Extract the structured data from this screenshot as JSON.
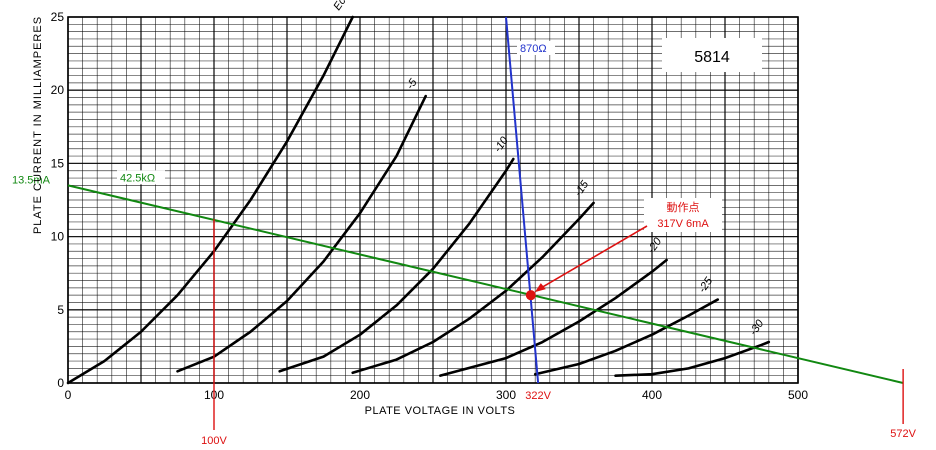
{
  "chart_data": {
    "type": "line",
    "title": "5814",
    "xlabel": "PLATE VOLTAGE IN VOLTS",
    "ylabel": "PLATE CURRENT IN MILLIAMPERES",
    "xlim": [
      0,
      500
    ],
    "ylim": [
      0,
      25
    ],
    "grid": true,
    "x_ticks": [
      0,
      100,
      200,
      300,
      400,
      500
    ],
    "y_ticks": [
      0,
      5,
      10,
      15,
      20,
      25
    ],
    "series": [
      {
        "name": "Ec=0",
        "points": [
          [
            0,
            0
          ],
          [
            25,
            1.5
          ],
          [
            50,
            3.5
          ],
          [
            75,
            6
          ],
          [
            100,
            9
          ],
          [
            125,
            12.5
          ],
          [
            150,
            16.5
          ],
          [
            175,
            21
          ],
          [
            195,
            25
          ]
        ]
      },
      {
        "name": "-5",
        "points": [
          [
            75,
            0.8
          ],
          [
            100,
            1.8
          ],
          [
            125,
            3.5
          ],
          [
            150,
            5.6
          ],
          [
            175,
            8.3
          ],
          [
            200,
            11.6
          ],
          [
            225,
            15.5
          ],
          [
            245,
            19.6
          ]
        ]
      },
      {
        "name": "-10",
        "points": [
          [
            145,
            0.8
          ],
          [
            175,
            1.8
          ],
          [
            200,
            3.3
          ],
          [
            225,
            5.3
          ],
          [
            250,
            7.8
          ],
          [
            275,
            10.9
          ],
          [
            300,
            14.5
          ],
          [
            305,
            15.3
          ]
        ]
      },
      {
        "name": "-15",
        "points": [
          [
            195,
            0.7
          ],
          [
            225,
            1.6
          ],
          [
            250,
            2.8
          ],
          [
            275,
            4.4
          ],
          [
            300,
            6.3
          ],
          [
            325,
            8.6
          ],
          [
            350,
            11.2
          ],
          [
            360,
            12.3
          ]
        ]
      },
      {
        "name": "-20",
        "points": [
          [
            255,
            0.5
          ],
          [
            300,
            1.7
          ],
          [
            325,
            2.8
          ],
          [
            350,
            4.2
          ],
          [
            375,
            5.8
          ],
          [
            400,
            7.6
          ],
          [
            410,
            8.4
          ]
        ]
      },
      {
        "name": "-25",
        "points": [
          [
            320,
            0.6
          ],
          [
            350,
            1.3
          ],
          [
            375,
            2.2
          ],
          [
            400,
            3.3
          ],
          [
            425,
            4.6
          ],
          [
            445,
            5.7
          ]
        ]
      },
      {
        "name": "-30",
        "points": [
          [
            375,
            0.5
          ],
          [
            400,
            0.6
          ],
          [
            425,
            1.0
          ],
          [
            450,
            1.7
          ],
          [
            475,
            2.6
          ],
          [
            480,
            2.8
          ]
        ]
      }
    ],
    "curve_labels": [
      "Ec=0",
      "-5",
      "-10",
      "-15",
      "-20",
      "-25",
      "-30"
    ],
    "load_lines": [
      {
        "label": "42.5kΩ",
        "color": "#118811",
        "from": [
          0,
          13.5
        ],
        "to": [
          572,
          0
        ]
      },
      {
        "label": "870Ω",
        "color": "#2233cc",
        "from": [
          300,
          25
        ],
        "to": [
          322,
          0
        ]
      }
    ],
    "markers": [
      {
        "label": "100V",
        "x": 100,
        "color": "#dd1111"
      },
      {
        "label": "322V",
        "x": 322,
        "color": "#dd1111"
      },
      {
        "label": "572V",
        "x": 572,
        "color": "#dd1111"
      }
    ],
    "y_marker": {
      "label": "13.5mA",
      "color": "#118811"
    },
    "operating_point": {
      "title": "動作点",
      "label": "317V 6mA",
      "x": 317,
      "y": 6,
      "color": "#dd1111"
    }
  }
}
